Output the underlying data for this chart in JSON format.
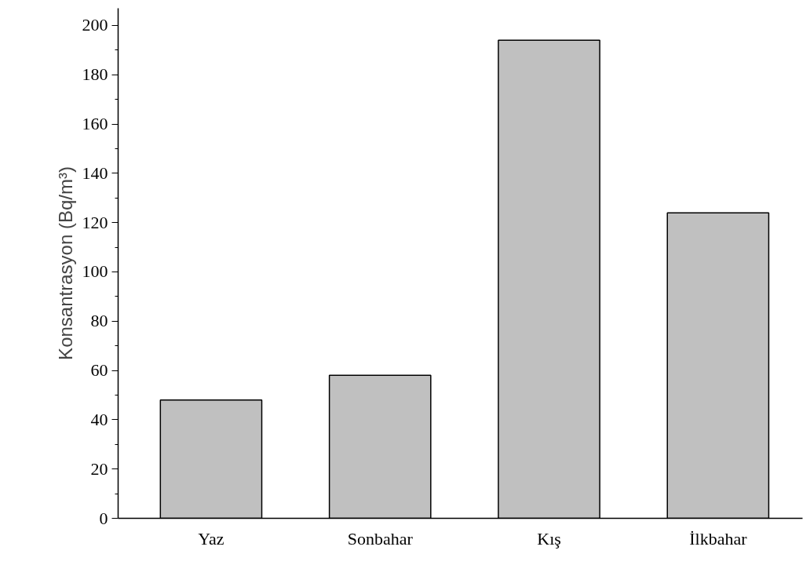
{
  "chart_data": {
    "type": "bar",
    "ylabel": "Konsantrasyon (Bq/m³)",
    "categories": [
      "Yaz",
      "Sonbahar",
      "Kış",
      "İlkbahar"
    ],
    "values": [
      48,
      58,
      194,
      124
    ],
    "color": "#c0c0c0",
    "ylim": [
      0,
      207
    ],
    "yticks": [
      0,
      {
        "value": 10,
        "label": null
      },
      20,
      {
        "value": 30,
        "label": null
      },
      40,
      {
        "value": 50,
        "label": null
      },
      60,
      {
        "value": 70,
        "label": null
      },
      80,
      {
        "value": 90,
        "label": null
      },
      100,
      {
        "value": 110,
        "label": null
      },
      120,
      {
        "value": 130,
        "label": null
      },
      140,
      {
        "value": 150,
        "label": null
      },
      160,
      {
        "value": 170,
        "label": null
      },
      180,
      {
        "value": 190,
        "label": null
      },
      200
    ],
    "grid": false
  }
}
